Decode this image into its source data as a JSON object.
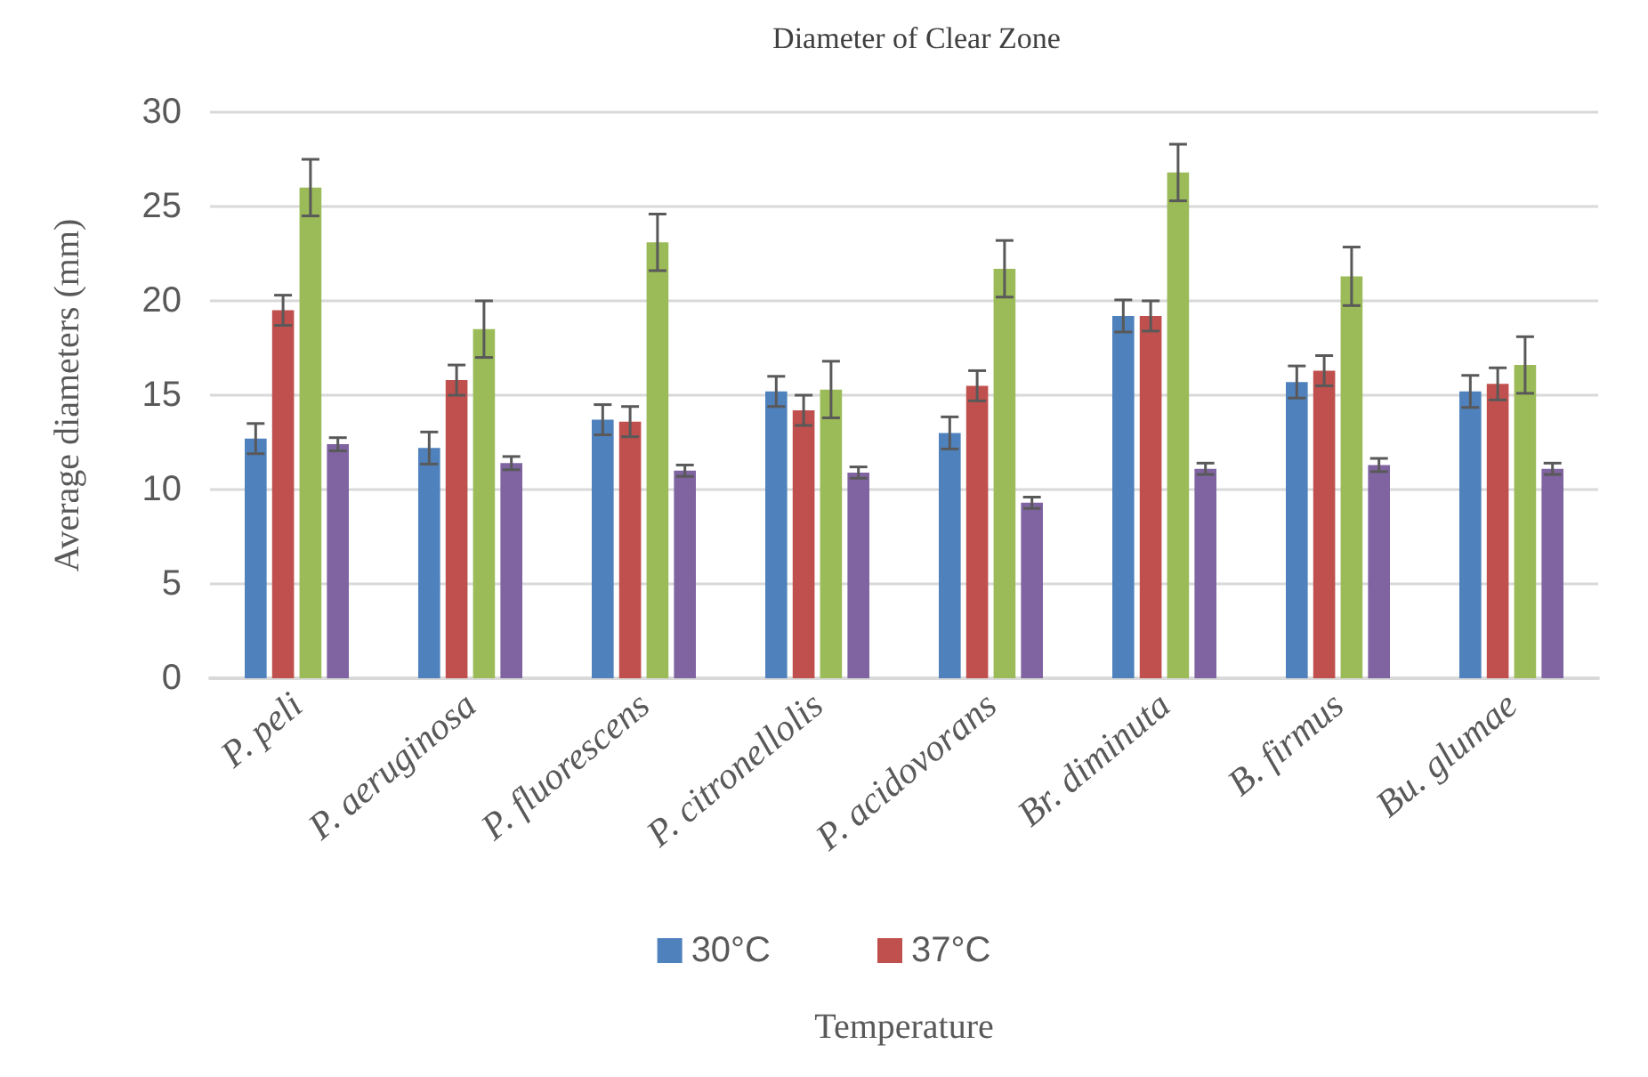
{
  "chart_data": {
    "type": "bar",
    "title": "Diameter of Clear Zone",
    "xlabel": "Temperature",
    "ylabel": "Average diameters (mm)",
    "categories": [
      "P. peli",
      "P. aeruginosa",
      "P. fluorescens",
      "P. citronellolis",
      "P. acidovorans",
      "Br. diminuta",
      "B. firmus",
      "Bu. glumae"
    ],
    "series": [
      {
        "name": "30°C",
        "color": "#4f81bd",
        "values": [
          12.7,
          12.2,
          13.7,
          15.2,
          13.0,
          19.2,
          15.7,
          15.2
        ],
        "errors": [
          0.8,
          0.85,
          0.8,
          0.8,
          0.85,
          0.85,
          0.85,
          0.85
        ]
      },
      {
        "name": "37°C",
        "color": "#c0504d",
        "values": [
          19.5,
          15.8,
          13.6,
          14.2,
          15.5,
          19.2,
          16.3,
          15.6
        ],
        "errors": [
          0.8,
          0.8,
          0.8,
          0.8,
          0.8,
          0.8,
          0.8,
          0.85
        ]
      },
      {
        "color": "#9bbb59",
        "values": [
          26.0,
          18.5,
          23.1,
          15.3,
          21.7,
          26.8,
          21.3,
          16.6
        ],
        "errors": [
          1.5,
          1.5,
          1.5,
          1.5,
          1.5,
          1.5,
          1.55,
          1.5
        ]
      },
      {
        "color": "#8064a2",
        "values": [
          12.4,
          11.4,
          11.0,
          10.9,
          9.3,
          11.1,
          11.3,
          11.1
        ],
        "errors": [
          0.35,
          0.35,
          0.3,
          0.3,
          0.3,
          0.3,
          0.35,
          0.3
        ]
      }
    ],
    "ylim": [
      0,
      30
    ],
    "yticks": [
      0,
      5,
      10,
      15,
      20,
      25,
      30
    ],
    "grid": "y",
    "legend": "bottom"
  }
}
